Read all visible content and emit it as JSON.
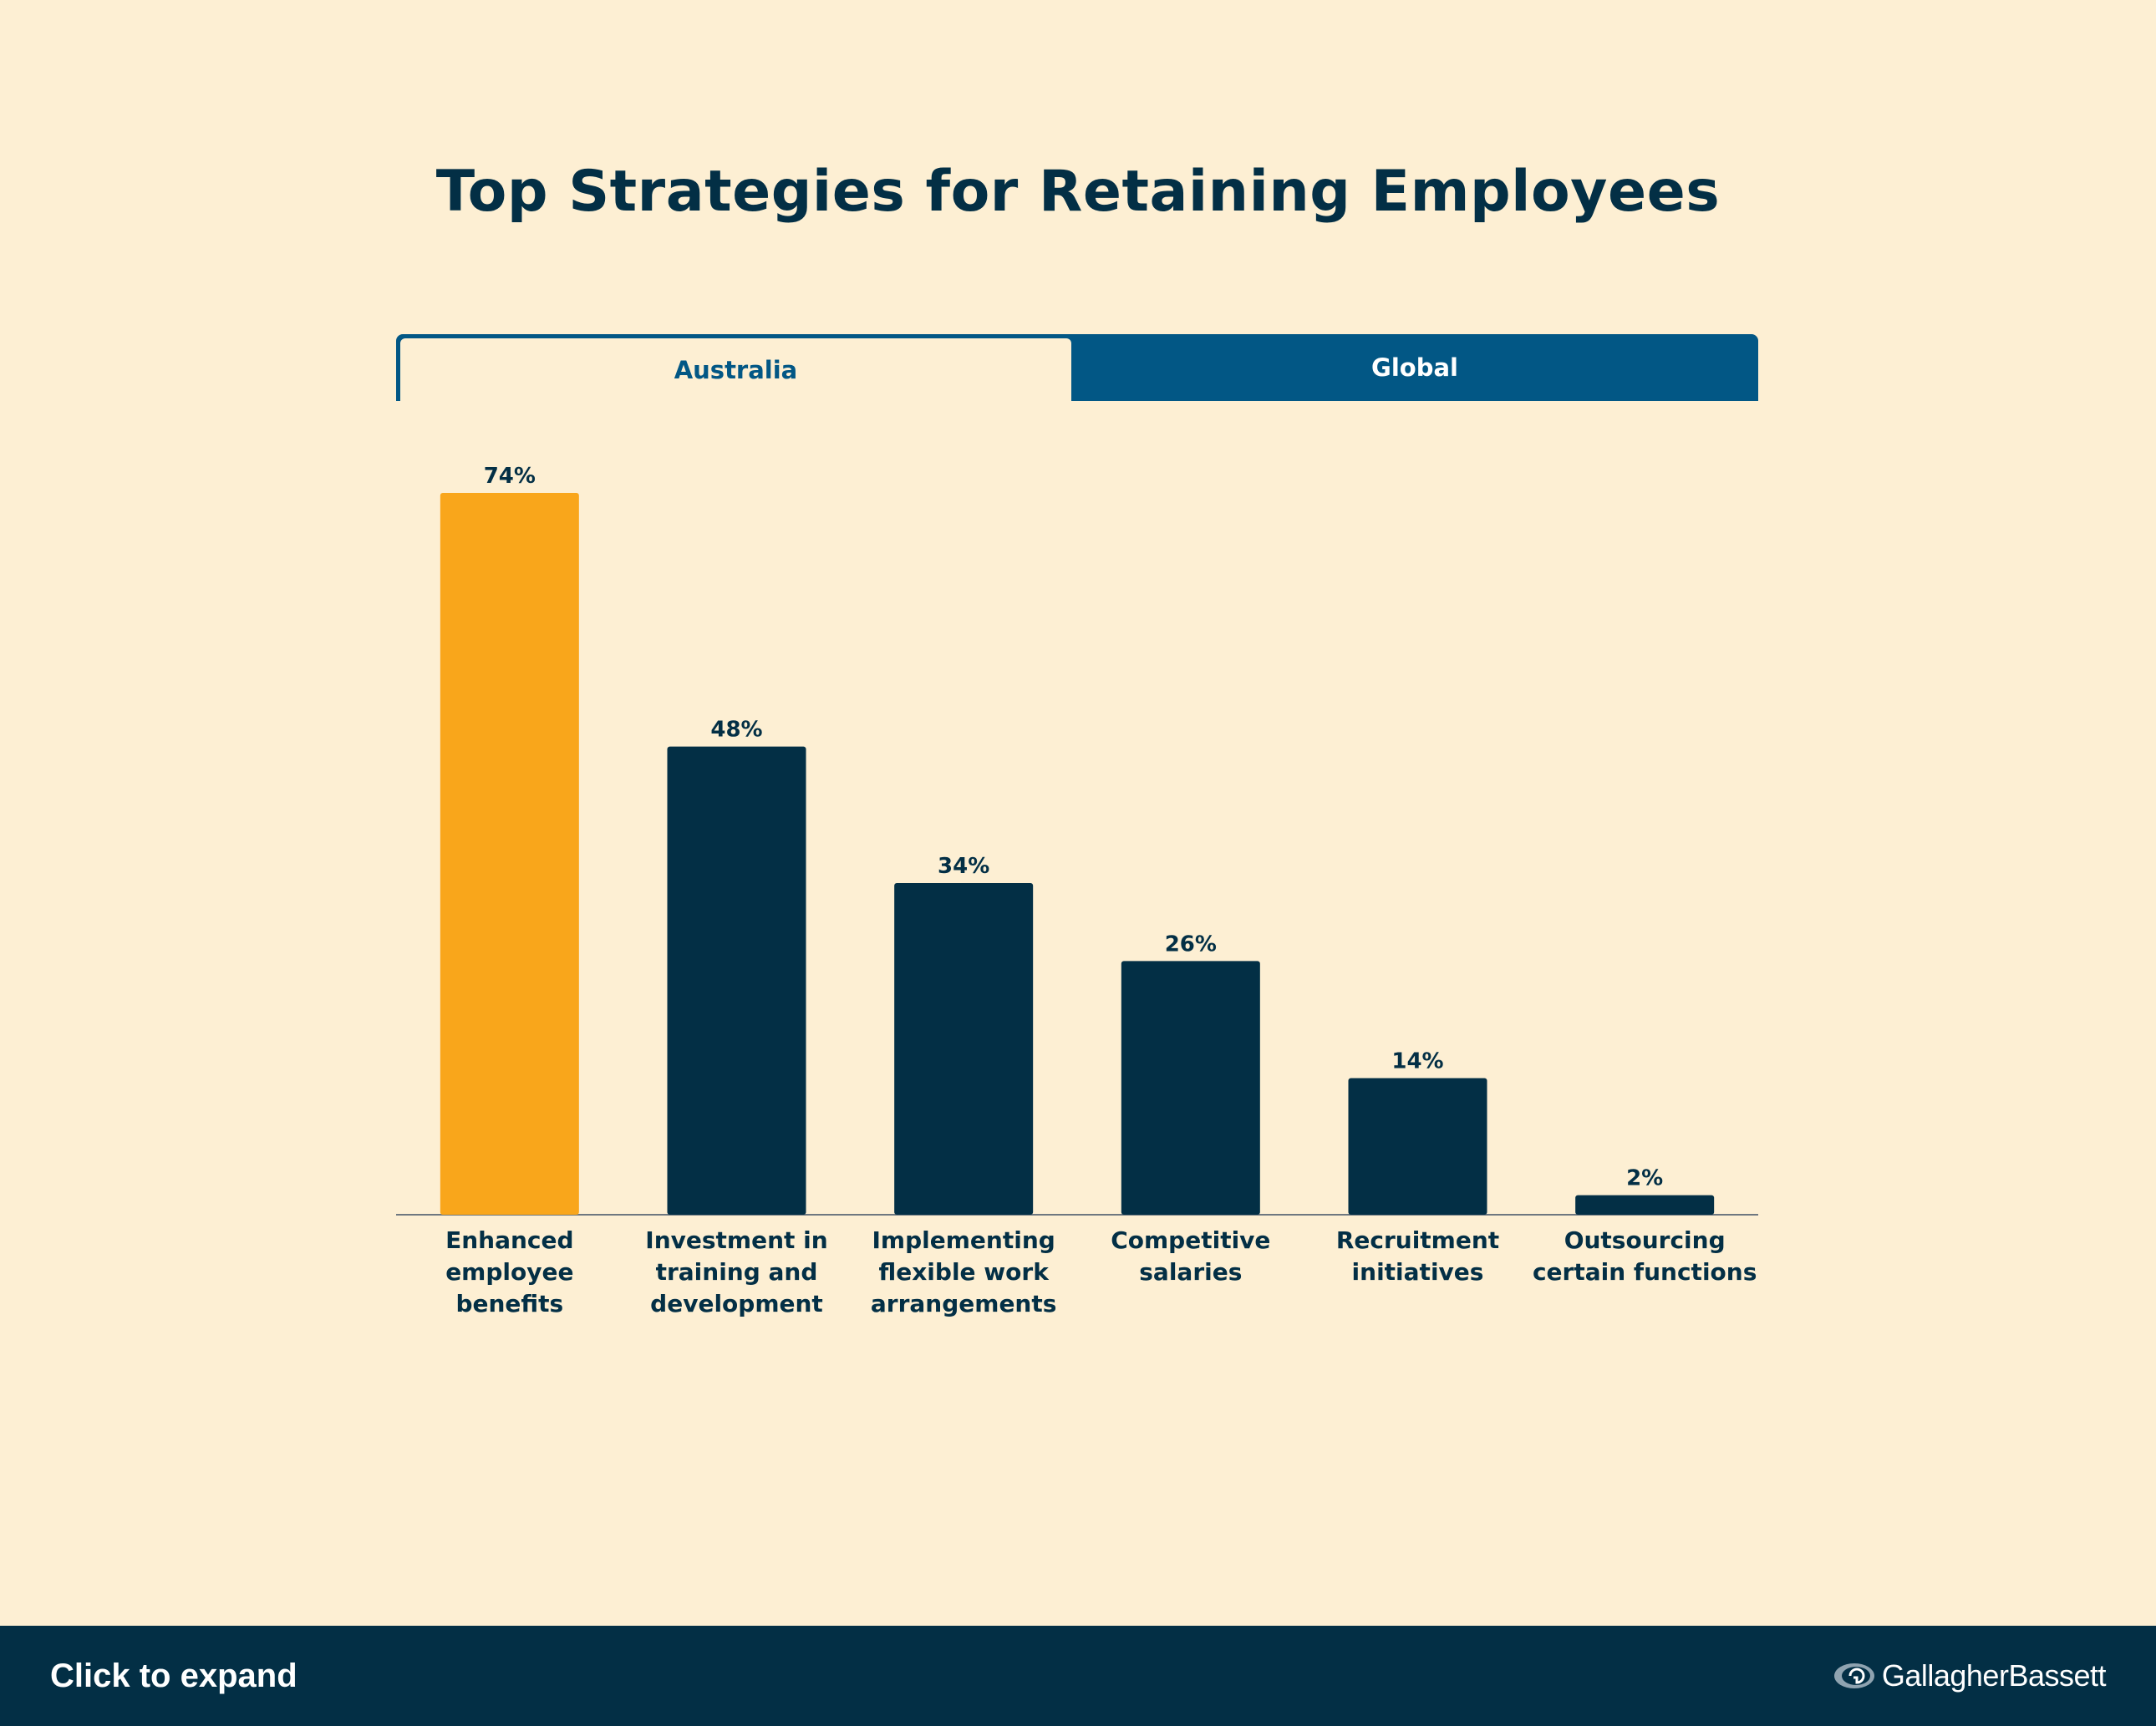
{
  "tabs": [
    {
      "label": "Australia",
      "active": true
    },
    {
      "label": "Global",
      "active": false
    }
  ],
  "footer": {
    "expand_label": "Click to expand",
    "logo_text": "GallagherBassett"
  },
  "colors": {
    "background": "#FDEFD3",
    "highlight_bar": "#F9A61B",
    "bar": "#032F45",
    "tab_active_bg": "#FDEFD3",
    "tab_bg": "#025785",
    "footer_bg": "#032F45"
  },
  "chart_data": {
    "type": "bar",
    "title": "Top Strategies for Retaining Employees",
    "categories": [
      "Enhanced employee benefits",
      "Investment in training and development",
      "Implementing flexible work arrangements",
      "Competitive salaries",
      "Recruitment initiatives",
      "Outsourcing certain functions"
    ],
    "category_lines": [
      [
        "Enhanced",
        "employee",
        "benefits"
      ],
      [
        "Investment in",
        "training and",
        "development"
      ],
      [
        "Implementing",
        "flexible work",
        "arrangements"
      ],
      [
        "Competitive",
        "salaries"
      ],
      [
        "Recruitment",
        "initiatives"
      ],
      [
        "Outsourcing",
        "certain functions"
      ]
    ],
    "values": [
      74,
      48,
      34,
      26,
      14,
      2
    ],
    "value_labels": [
      "74%",
      "48%",
      "34%",
      "26%",
      "14%",
      "2%"
    ],
    "highlight_index": 0,
    "ylim": [
      0,
      74
    ],
    "xlabel": "",
    "ylabel": "",
    "grid": false,
    "legend": "none"
  }
}
